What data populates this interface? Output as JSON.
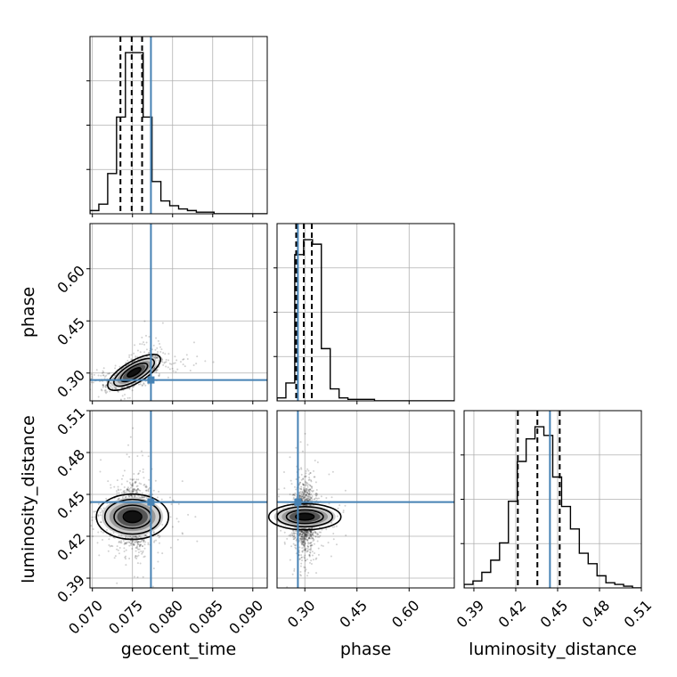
{
  "chart_data": {
    "type": "corner",
    "parameters": [
      "geocent_time",
      "phase",
      "luminosity_distance"
    ],
    "axis_labels": [
      "geocent_time",
      "phase",
      "luminosity_distance"
    ],
    "ranges": [
      [
        0.0697,
        0.0918
      ],
      [
        0.22,
        0.73
      ],
      [
        0.383,
        0.51
      ]
    ],
    "ticks": [
      {
        "values": [
          0.07,
          0.075,
          0.08,
          0.085,
          0.09
        ],
        "labels": [
          "0.070",
          "0.075",
          "0.080",
          "0.085",
          "0.090"
        ]
      },
      {
        "values": [
          0.3,
          0.45,
          0.6
        ],
        "labels": [
          "0.30",
          "0.45",
          "0.60"
        ]
      },
      {
        "values": [
          0.39,
          0.42,
          0.45,
          0.48,
          0.51
        ],
        "labels": [
          "0.39",
          "0.42",
          "0.45",
          "0.48",
          "0.51"
        ]
      }
    ],
    "truths": [
      0.0773,
      0.28,
      0.4445
    ],
    "quantiles": [
      [
        0.0735,
        0.0749,
        0.0762
      ],
      [
        0.275,
        0.297,
        0.32
      ],
      [
        0.4215,
        0.4355,
        0.4515
      ]
    ],
    "histograms": [
      {
        "edges_range": [
          0.0697,
          0.0918
        ],
        "counts": [
          2,
          6,
          25,
          60,
          100,
          100,
          60,
          20,
          8,
          5,
          3,
          2,
          1,
          1,
          0,
          0,
          0,
          0,
          0,
          0
        ]
      },
      {
        "edges_range": [
          0.22,
          0.73
        ],
        "counts": [
          2,
          12,
          98,
          108,
          105,
          35,
          8,
          2,
          1,
          1,
          1,
          0,
          0,
          0,
          0,
          0,
          0,
          0,
          0,
          0
        ]
      },
      {
        "edges_range": [
          0.383,
          0.51
        ],
        "counts": [
          2,
          4,
          9,
          16,
          26,
          50,
          73,
          86,
          93,
          88,
          64,
          47,
          34,
          20,
          14,
          7,
          3,
          2,
          1,
          0
        ]
      }
    ],
    "pairs": [
      {
        "x": "geocent_time",
        "y": "phase",
        "center": [
          0.0752,
          0.302
        ],
        "sd": [
          0.0014,
          0.022
        ],
        "corr": 0.72
      },
      {
        "x": "geocent_time",
        "y": "luminosity_distance",
        "center": [
          0.075,
          0.434
        ],
        "sd": [
          0.0012,
          0.011
        ],
        "corr": 0.0
      },
      {
        "x": "phase",
        "y": "luminosity_distance",
        "center": [
          0.3,
          0.434
        ],
        "sd": [
          0.016,
          0.011
        ],
        "corr": 0.0
      }
    ],
    "colors": {
      "truth": "#4682b4",
      "hist": "#000000",
      "grid": "#b0b0b0",
      "density": "#000000"
    },
    "grid": true
  }
}
